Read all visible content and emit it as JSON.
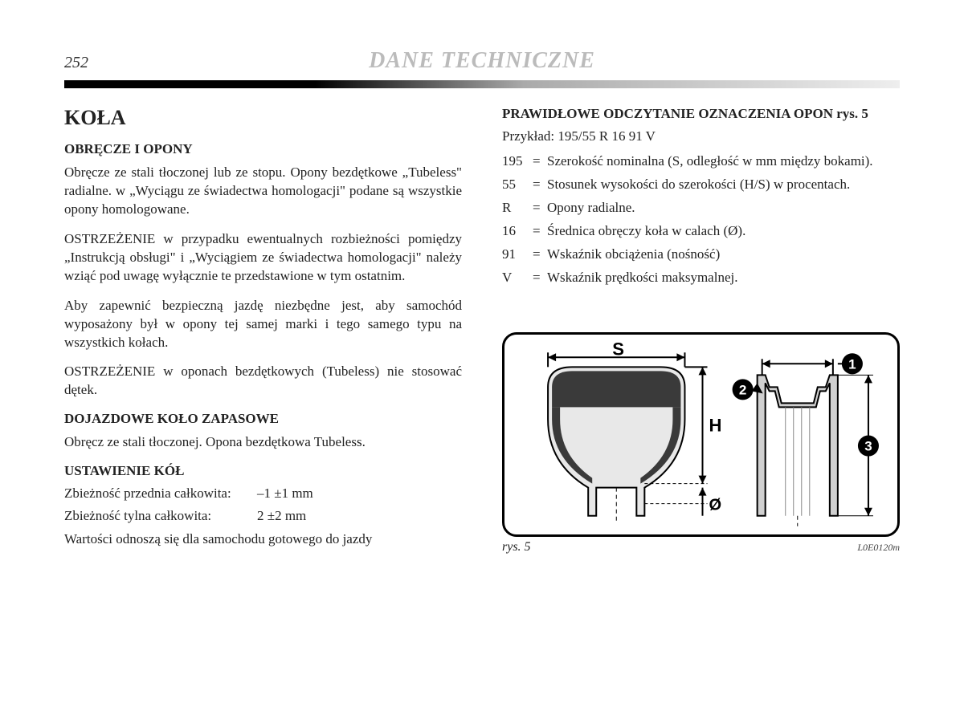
{
  "page": {
    "number": "252",
    "chapter_title": "DANE TECHNICZNE"
  },
  "left": {
    "main_heading": "KOŁA",
    "sub1": "OBRĘCZE I OPONY",
    "p1": "Obręcze ze stali tłoczonej lub ze stopu. Opony bezdętkowe „Tubeless\" radialne. w „Wyciągu ze świadectwa homologacji\" podane są wszystkie opony homologowane.",
    "p2": "OSTRZEŻENIE w przypadku ewentualnych rozbieżności pomiędzy „Instrukcją obsługi\" i „Wyciągiem ze świadectwa homologacji\" należy wziąć pod uwagę wyłącznie te przedstawione w tym ostatnim.",
    "p3": "Aby zapewnić bezpieczną jazdę niezbędne jest, aby samochód wyposażony był w opony tej samej marki i tego samego typu na wszystkich kołach.",
    "p4": "OSTRZEŻENIE w oponach bezdętkowych (Tubeless) nie stosować dętek.",
    "sub2": "DOJAZDOWE KOŁO ZAPASOWE",
    "p5": "Obręcz ze stali tłoczonej. Opona bezdętkowa Tubeless.",
    "sub3": "USTAWIENIE KÓŁ",
    "toe_front_label": "Zbieżność przednia całkowita:",
    "toe_front_value": "–1 ±1 mm",
    "toe_rear_label": "Zbieżność tylna całkowita:",
    "toe_rear_value": "2 ±2 mm",
    "p6": "Wartości odnoszą się dla samochodu gotowego do jazdy"
  },
  "right": {
    "sub1": "PRAWIDŁOWE ODCZYTANIE OZNACZENIA OPON rys. 5",
    "example": "Przykład: 195/55 R 16 91 V",
    "defs": [
      {
        "code": "195",
        "text": "Szerokość nominalna (S, odległość w mm między bokami)."
      },
      {
        "code": "55",
        "text": "Stosunek wysokości do szerokości (H/S) w procentach."
      },
      {
        "code": "R",
        "text": "Opony radialne."
      },
      {
        "code": "16",
        "text": "Średnica obręczy koła w calach (Ø)."
      },
      {
        "code": "91",
        "text": "Wskaźnik obciążenia (nośność)"
      },
      {
        "code": "V",
        "text": "Wskaźnik prędkości maksymalnej."
      }
    ]
  },
  "figure": {
    "labels": {
      "S": "S",
      "H": "H",
      "D": "Ø",
      "c1": "1",
      "c2": "2",
      "c3": "3"
    },
    "caption": "rys. 5",
    "code": "L0E0120m",
    "colors": {
      "frame": "#000000",
      "tire_fill": "#e8e8e8",
      "tire_dark": "#3a3a3a",
      "rim_fill": "#d0d0d0",
      "rim_line": "#888888"
    }
  }
}
